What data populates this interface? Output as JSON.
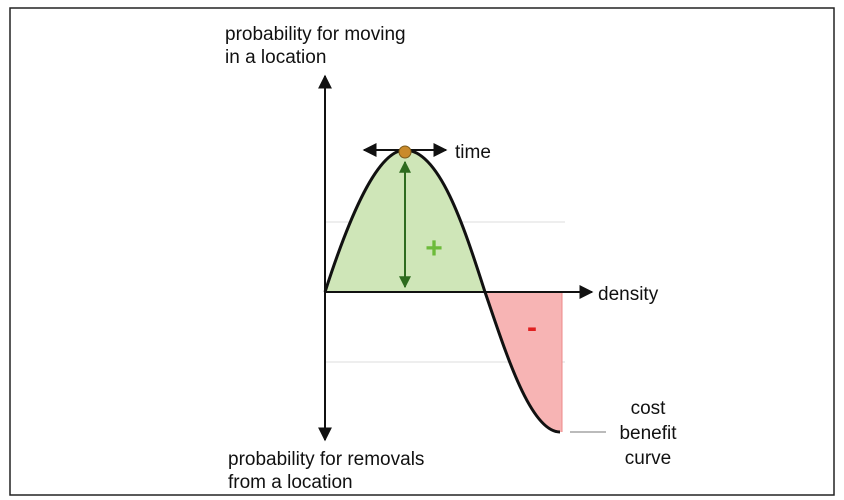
{
  "y_top_label": [
    "probability for moving",
    "in a location"
  ],
  "y_bottom_label": [
    "probability for removals",
    "from a location"
  ],
  "time_label": "time",
  "x_label": "density",
  "plus_sign": "+",
  "minus_sign": "-",
  "curve_label": [
    "cost",
    "benefit",
    "curve"
  ]
}
